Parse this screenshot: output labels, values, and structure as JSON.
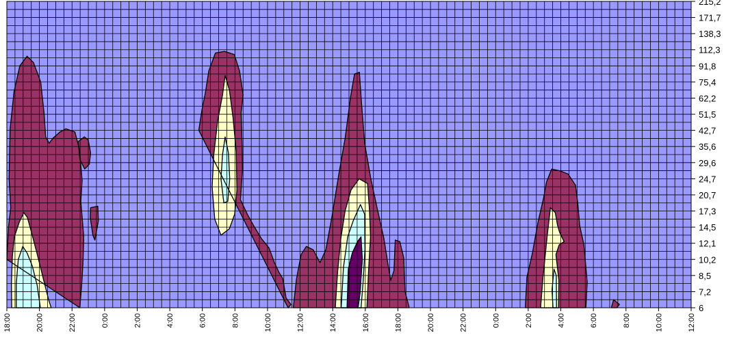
{
  "chart_data": {
    "type": "heatmap",
    "subtype": "contour",
    "title": "",
    "xlabel": "",
    "ylabel": "",
    "x_tick_labels": [
      "18:00",
      "20:00",
      "22:00",
      "0:00",
      "2:00",
      "4:00",
      "6:00",
      "8:00",
      "10:00",
      "12:00",
      "14:00",
      "16:00",
      "18:00",
      "20:00",
      "22:00",
      "0:00",
      "2:00",
      "4:00",
      "6:00",
      "8:00",
      "10:00",
      "12:00"
    ],
    "y_tick_labels": [
      "6",
      "7,2",
      "8,5",
      "10,2",
      "12,1",
      "14,5",
      "17,3",
      "20,7",
      "24,7",
      "29,6",
      "35,6",
      "42,7",
      "51,5",
      "62,2",
      "75,4",
      "91,8",
      "112,3",
      "138,3",
      "171,7",
      "215,2"
    ],
    "grid": true,
    "colors": {
      "background_level": "#9999ff",
      "level_1": "#993366",
      "level_2": "#ffffcc",
      "level_3": "#ccffff",
      "level_4": "#660066",
      "grid_line": "#000000",
      "outline": "#000000"
    },
    "regions": [
      {
        "name": "",
        "level": 1,
        "points": [
          [
            0.0,
            3
          ],
          [
            0.05,
            5
          ],
          [
            0.12,
            6.2
          ],
          [
            0.07,
            8
          ],
          [
            0.1,
            11.1
          ],
          [
            0.22,
            13.4
          ],
          [
            0.4,
            15
          ],
          [
            0.62,
            15.6
          ],
          [
            0.82,
            15.2
          ],
          [
            1.04,
            14
          ],
          [
            1.14,
            12.1
          ],
          [
            1.19,
            10.6
          ],
          [
            1.3,
            10.2
          ],
          [
            1.41,
            10.5
          ],
          [
            1.63,
            10.9
          ],
          [
            1.81,
            11.1
          ],
          [
            2.09,
            10.9
          ],
          [
            2.23,
            9.8
          ],
          [
            2.31,
            7.9
          ],
          [
            2.27,
            6.6
          ],
          [
            2.36,
            4.4
          ],
          [
            2.34,
            2.9
          ],
          [
            2.3,
            1.5
          ],
          [
            2.24,
            0
          ]
        ],
        "level_inner": [
          {
            "level": 2,
            "points": [
              [
                0.15,
                0
              ],
              [
                0.14,
                1.5
              ],
              [
                0.17,
                3.2
              ],
              [
                0.23,
                4.4
              ],
              [
                0.38,
                5.3
              ],
              [
                0.52,
                5.9
              ],
              [
                0.63,
                5.6
              ],
              [
                0.74,
                4.8
              ],
              [
                0.91,
                3.5
              ],
              [
                1.12,
                1.8
              ],
              [
                1.28,
                0.5
              ],
              [
                1.36,
                0
              ]
            ]
          },
          {
            "level": 3,
            "points": [
              [
                0.29,
                0
              ],
              [
                0.29,
                1.5
              ],
              [
                0.35,
                3.0
              ],
              [
                0.49,
                3.8
              ],
              [
                0.62,
                3.4
              ],
              [
                0.78,
                2.6
              ],
              [
                0.93,
                1.4
              ],
              [
                1.03,
                0
              ]
            ]
          }
        ]
      },
      {
        "name": "",
        "level": 1,
        "points": [
          [
            2.19,
            10.3
          ],
          [
            2.38,
            10.6
          ],
          [
            2.5,
            10.4
          ],
          [
            2.57,
            9.6
          ],
          [
            2.53,
            8.9
          ],
          [
            2.39,
            8.6
          ],
          [
            2.24,
            9.2
          ]
        ]
      },
      {
        "name": "",
        "level": 1,
        "points": [
          [
            2.57,
            6.2
          ],
          [
            2.79,
            6.3
          ],
          [
            2.81,
            5.4
          ],
          [
            2.7,
            4.2
          ],
          [
            2.64,
            4.5
          ],
          [
            2.56,
            5.6
          ]
        ]
      },
      {
        "name": "",
        "level": 1,
        "points": [
          [
            5.89,
            11
          ],
          [
            5.99,
            12.3
          ],
          [
            6.09,
            13.3
          ],
          [
            6.2,
            14.7
          ],
          [
            6.4,
            15.8
          ],
          [
            6.68,
            15.9
          ],
          [
            6.98,
            15.7
          ],
          [
            7.14,
            14.7
          ],
          [
            7.25,
            13.2
          ],
          [
            7.19,
            12.1
          ],
          [
            7.22,
            10
          ],
          [
            7.23,
            8.6
          ],
          [
            7.17,
            6.7
          ],
          [
            7.38,
            5.8
          ],
          [
            7.57,
            5.1
          ],
          [
            7.81,
            4.3
          ],
          [
            8.05,
            3.7
          ],
          [
            8.21,
            2.8
          ],
          [
            8.35,
            2.2
          ],
          [
            8.47,
            1.8
          ],
          [
            8.57,
            0.6
          ],
          [
            8.72,
            0.2
          ],
          [
            8.63,
            0
          ]
        ],
        "level_inner": [
          {
            "level": 2,
            "points": [
              [
                6.35,
                9.5
              ],
              [
                6.47,
                11.6
              ],
              [
                6.62,
                13.2
              ],
              [
                6.7,
                14.4
              ],
              [
                6.83,
                13.5
              ],
              [
                6.94,
                11.8
              ],
              [
                7.04,
                9.7
              ],
              [
                7.06,
                7.3
              ],
              [
                6.99,
                5.8
              ],
              [
                6.83,
                4.9
              ],
              [
                6.57,
                4.5
              ],
              [
                6.38,
                5.5
              ],
              [
                6.3,
                7.5
              ]
            ]
          },
          {
            "level": 3,
            "points": [
              [
                6.57,
                8.0
              ],
              [
                6.62,
                9.5
              ],
              [
                6.7,
                10.6
              ],
              [
                6.8,
                9.6
              ],
              [
                6.84,
                8.0
              ],
              [
                6.78,
                6.6
              ],
              [
                6.66,
                6.5
              ]
            ]
          }
        ]
      },
      {
        "name": "",
        "level": 1,
        "points": [
          [
            8.79,
            0
          ],
          [
            8.89,
            1.8
          ],
          [
            9.03,
            3.3
          ],
          [
            9.19,
            3.8
          ],
          [
            9.4,
            3.6
          ],
          [
            9.61,
            2.8
          ],
          [
            9.79,
            3.6
          ],
          [
            9.99,
            5.8
          ],
          [
            10.18,
            8.2
          ],
          [
            10.38,
            10.5
          ],
          [
            10.55,
            13.1
          ],
          [
            10.67,
            14.5
          ],
          [
            10.82,
            14.6
          ],
          [
            10.88,
            12.8
          ],
          [
            10.98,
            10.2
          ],
          [
            11.17,
            8.0
          ],
          [
            11.36,
            6.2
          ],
          [
            11.57,
            4.3
          ],
          [
            11.68,
            2.9
          ],
          [
            11.78,
            1.7
          ],
          [
            11.88,
            2.3
          ],
          [
            11.92,
            4.2
          ],
          [
            12.06,
            4.1
          ],
          [
            12.18,
            3.1
          ],
          [
            12.22,
            1.0
          ],
          [
            12.35,
            0
          ]
        ],
        "level_inner": [
          {
            "level": 2,
            "points": [
              [
                10.08,
                0
              ],
              [
                10.15,
                2.2
              ],
              [
                10.25,
                4.3
              ],
              [
                10.38,
                6.0
              ],
              [
                10.56,
                7.3
              ],
              [
                10.81,
                8.0
              ],
              [
                11.07,
                7.7
              ],
              [
                11.13,
                6.0
              ],
              [
                11.16,
                4.4
              ],
              [
                11.1,
                2.3
              ],
              [
                11.05,
                0
              ]
            ]
          },
          {
            "level": 3,
            "points": [
              [
                10.26,
                0
              ],
              [
                10.33,
                2.5
              ],
              [
                10.46,
                4.4
              ],
              [
                10.63,
                5.4
              ],
              [
                10.85,
                6.4
              ],
              [
                10.98,
                5.8
              ],
              [
                10.99,
                3.6
              ],
              [
                10.93,
                1.5
              ],
              [
                10.87,
                0
              ]
            ]
          },
          {
            "level": 4,
            "points": [
              [
                10.44,
                0
              ],
              [
                10.48,
                2.4
              ],
              [
                10.6,
                3.4
              ],
              [
                10.76,
                4.1
              ],
              [
                10.87,
                4.4
              ],
              [
                10.91,
                3.0
              ],
              [
                10.84,
                0.9
              ],
              [
                10.78,
                0
              ]
            ]
          }
        ]
      },
      {
        "name": "",
        "level": 1,
        "points": [
          [
            15.91,
            0
          ],
          [
            15.96,
            1.9
          ],
          [
            16.12,
            3.3
          ],
          [
            16.3,
            5.3
          ],
          [
            16.47,
            6.8
          ],
          [
            16.56,
            7.8
          ],
          [
            16.72,
            8.6
          ],
          [
            16.96,
            8.5
          ],
          [
            17.22,
            8.3
          ],
          [
            17.45,
            7.6
          ],
          [
            17.52,
            6.5
          ],
          [
            17.58,
            5.1
          ],
          [
            17.71,
            3.9
          ],
          [
            17.81,
            1.6
          ],
          [
            17.77,
            0
          ]
        ],
        "level_inner": [
          {
            "level": 2,
            "points": [
              [
                16.38,
                0
              ],
              [
                16.45,
                1.8
              ],
              [
                16.58,
                4.4
              ],
              [
                16.68,
                6.2
              ],
              [
                16.83,
                5.9
              ],
              [
                16.9,
                5.1
              ],
              [
                16.96,
                4.7
              ],
              [
                17.1,
                4.1
              ],
              [
                16.95,
                3.9
              ],
              [
                16.85,
                3.3
              ],
              [
                16.94,
                1.7
              ],
              [
                16.93,
                0
              ]
            ]
          },
          {
            "level": 3,
            "points": [
              [
                16.76,
                0
              ],
              [
                16.73,
                1.1
              ],
              [
                16.79,
                2.4
              ],
              [
                16.86,
                2.0
              ],
              [
                16.87,
                0
              ]
            ]
          }
        ]
      },
      {
        "name": "",
        "level": 1,
        "points": [
          [
            18.55,
            0
          ],
          [
            18.62,
            0.5
          ],
          [
            18.8,
            0.2
          ],
          [
            18.71,
            0
          ]
        ]
      }
    ]
  }
}
